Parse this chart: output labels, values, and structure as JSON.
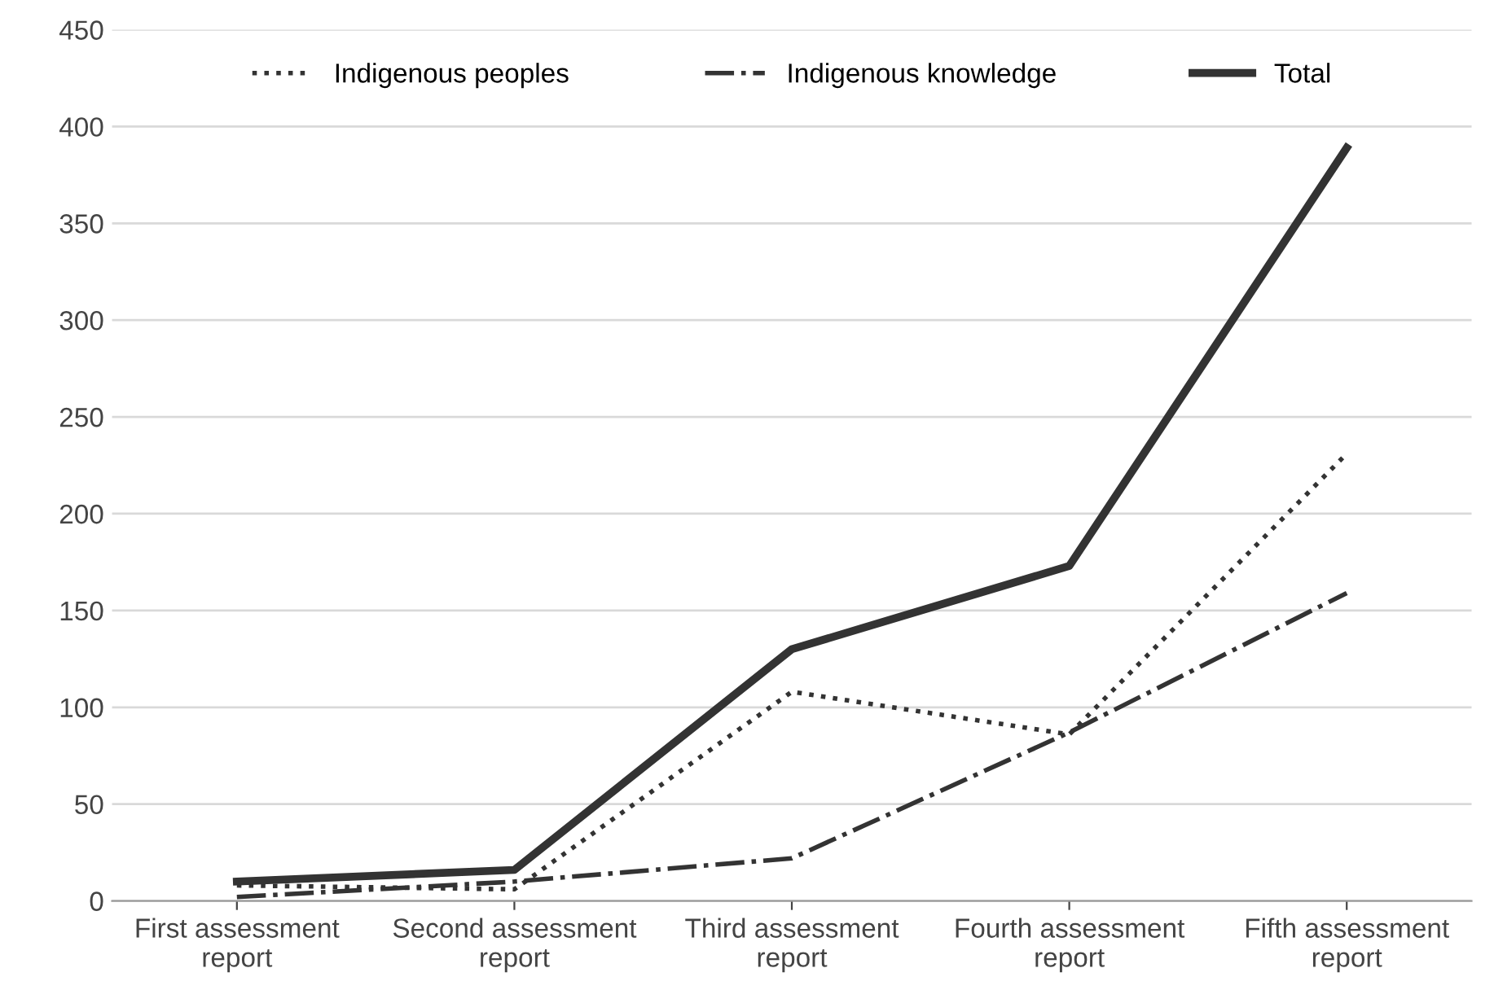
{
  "chart_data": {
    "type": "line",
    "categories": [
      "First assessment\nreport",
      "Second assessment\nreport",
      "Third assessment\nreport",
      "Fourth assessment\nreport",
      "Fifth assessment\nreport"
    ],
    "series": [
      {
        "name": "Indigenous peoples",
        "color": "#333333",
        "line_style": "dotted",
        "values": [
          8,
          6,
          108,
          86,
          231
        ]
      },
      {
        "name": "Indigenous knowledge",
        "color": "#333333",
        "line_style": "dashdot",
        "values": [
          2,
          10,
          22,
          87,
          159
        ]
      },
      {
        "name": "Total",
        "color": "#333333",
        "line_style": "solid",
        "values": [
          10,
          16,
          130,
          173,
          389
        ]
      }
    ],
    "ylim": [
      0,
      450
    ],
    "yticks": [
      0,
      50,
      100,
      150,
      200,
      250,
      300,
      350,
      400,
      450
    ],
    "grid": "y",
    "legend": "top",
    "marker": "none"
  }
}
